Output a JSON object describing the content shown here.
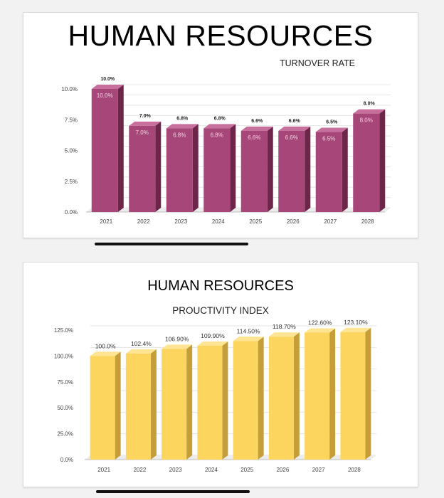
{
  "colors": {
    "bar1_front": "#a74678",
    "bar1_side": "#6d2549",
    "bar1_top": "#c8709d",
    "bar2_front": "#fcd55f",
    "bar2_side": "#c59e39",
    "bar2_top": "#ffe493"
  },
  "chart_data": [
    {
      "type": "bar",
      "title": "HUMAN RESOURCES",
      "subtitle": "TURNOVER RATE",
      "categories": [
        "2021",
        "2022",
        "2023",
        "2024",
        "2025",
        "2026",
        "2027",
        "2028"
      ],
      "values": [
        10.0,
        7.0,
        6.8,
        6.8,
        6.6,
        6.6,
        6.5,
        8.0
      ],
      "labels": [
        "10.0%",
        "7.0%",
        "6.8%",
        "6.8%",
        "6.6%",
        "6.6%",
        "6.5%",
        "8.0%"
      ],
      "yticks": [
        "0.0%",
        "2.5%",
        "5.0%",
        "7.5%",
        "10.0%"
      ],
      "ylim": [
        0,
        10
      ],
      "grid": true
    },
    {
      "type": "bar",
      "title": "HUMAN RESOURCES",
      "subtitle": "PROUCTIVITY INDEX",
      "categories": [
        "2021",
        "2022",
        "2023",
        "2024",
        "2025",
        "2026",
        "2027",
        "2028"
      ],
      "values": [
        100.0,
        102.4,
        106.9,
        109.9,
        114.5,
        118.7,
        122.6,
        123.1
      ],
      "labels": [
        "100.0%",
        "102.4%",
        "106.90%",
        "109.90%",
        "114.50%",
        "118.70%",
        "122.60%",
        "123.10%"
      ],
      "yticks": [
        "0.0%",
        "25.0%",
        "50.0%",
        "75.0%",
        "100.0%",
        "125.0%"
      ],
      "ylim": [
        0,
        125
      ],
      "grid": true
    }
  ]
}
